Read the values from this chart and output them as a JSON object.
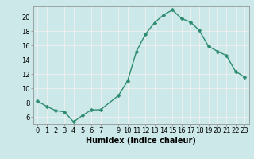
{
  "x": [
    0,
    1,
    2,
    3,
    4,
    5,
    6,
    7,
    9,
    10,
    11,
    12,
    13,
    14,
    15,
    16,
    17,
    18,
    19,
    20,
    21,
    22,
    23
  ],
  "y": [
    8.2,
    7.5,
    6.9,
    6.7,
    5.3,
    6.2,
    7.0,
    7.0,
    9.0,
    11.0,
    15.2,
    17.6,
    19.2,
    20.3,
    21.0,
    19.8,
    19.3,
    18.1,
    15.9,
    15.2,
    14.6,
    12.4,
    11.6
  ],
  "line_color": "#2d8b70",
  "marker_color": "#2d8b70",
  "bg_color": "#cce8e8",
  "grid_color": "#f0f0f0",
  "xlabel": "Humidex (Indice chaleur)",
  "xlim": [
    -0.5,
    23.5
  ],
  "ylim": [
    5.0,
    21.5
  ],
  "yticks": [
    6,
    8,
    10,
    12,
    14,
    16,
    18,
    20
  ],
  "xticks": [
    0,
    1,
    2,
    3,
    4,
    5,
    6,
    7,
    9,
    10,
    11,
    12,
    13,
    14,
    15,
    16,
    17,
    18,
    19,
    20,
    21,
    22,
    23
  ],
  "xlabel_fontsize": 7,
  "tick_fontsize": 6,
  "marker_size": 2.5,
  "line_width": 1.0
}
